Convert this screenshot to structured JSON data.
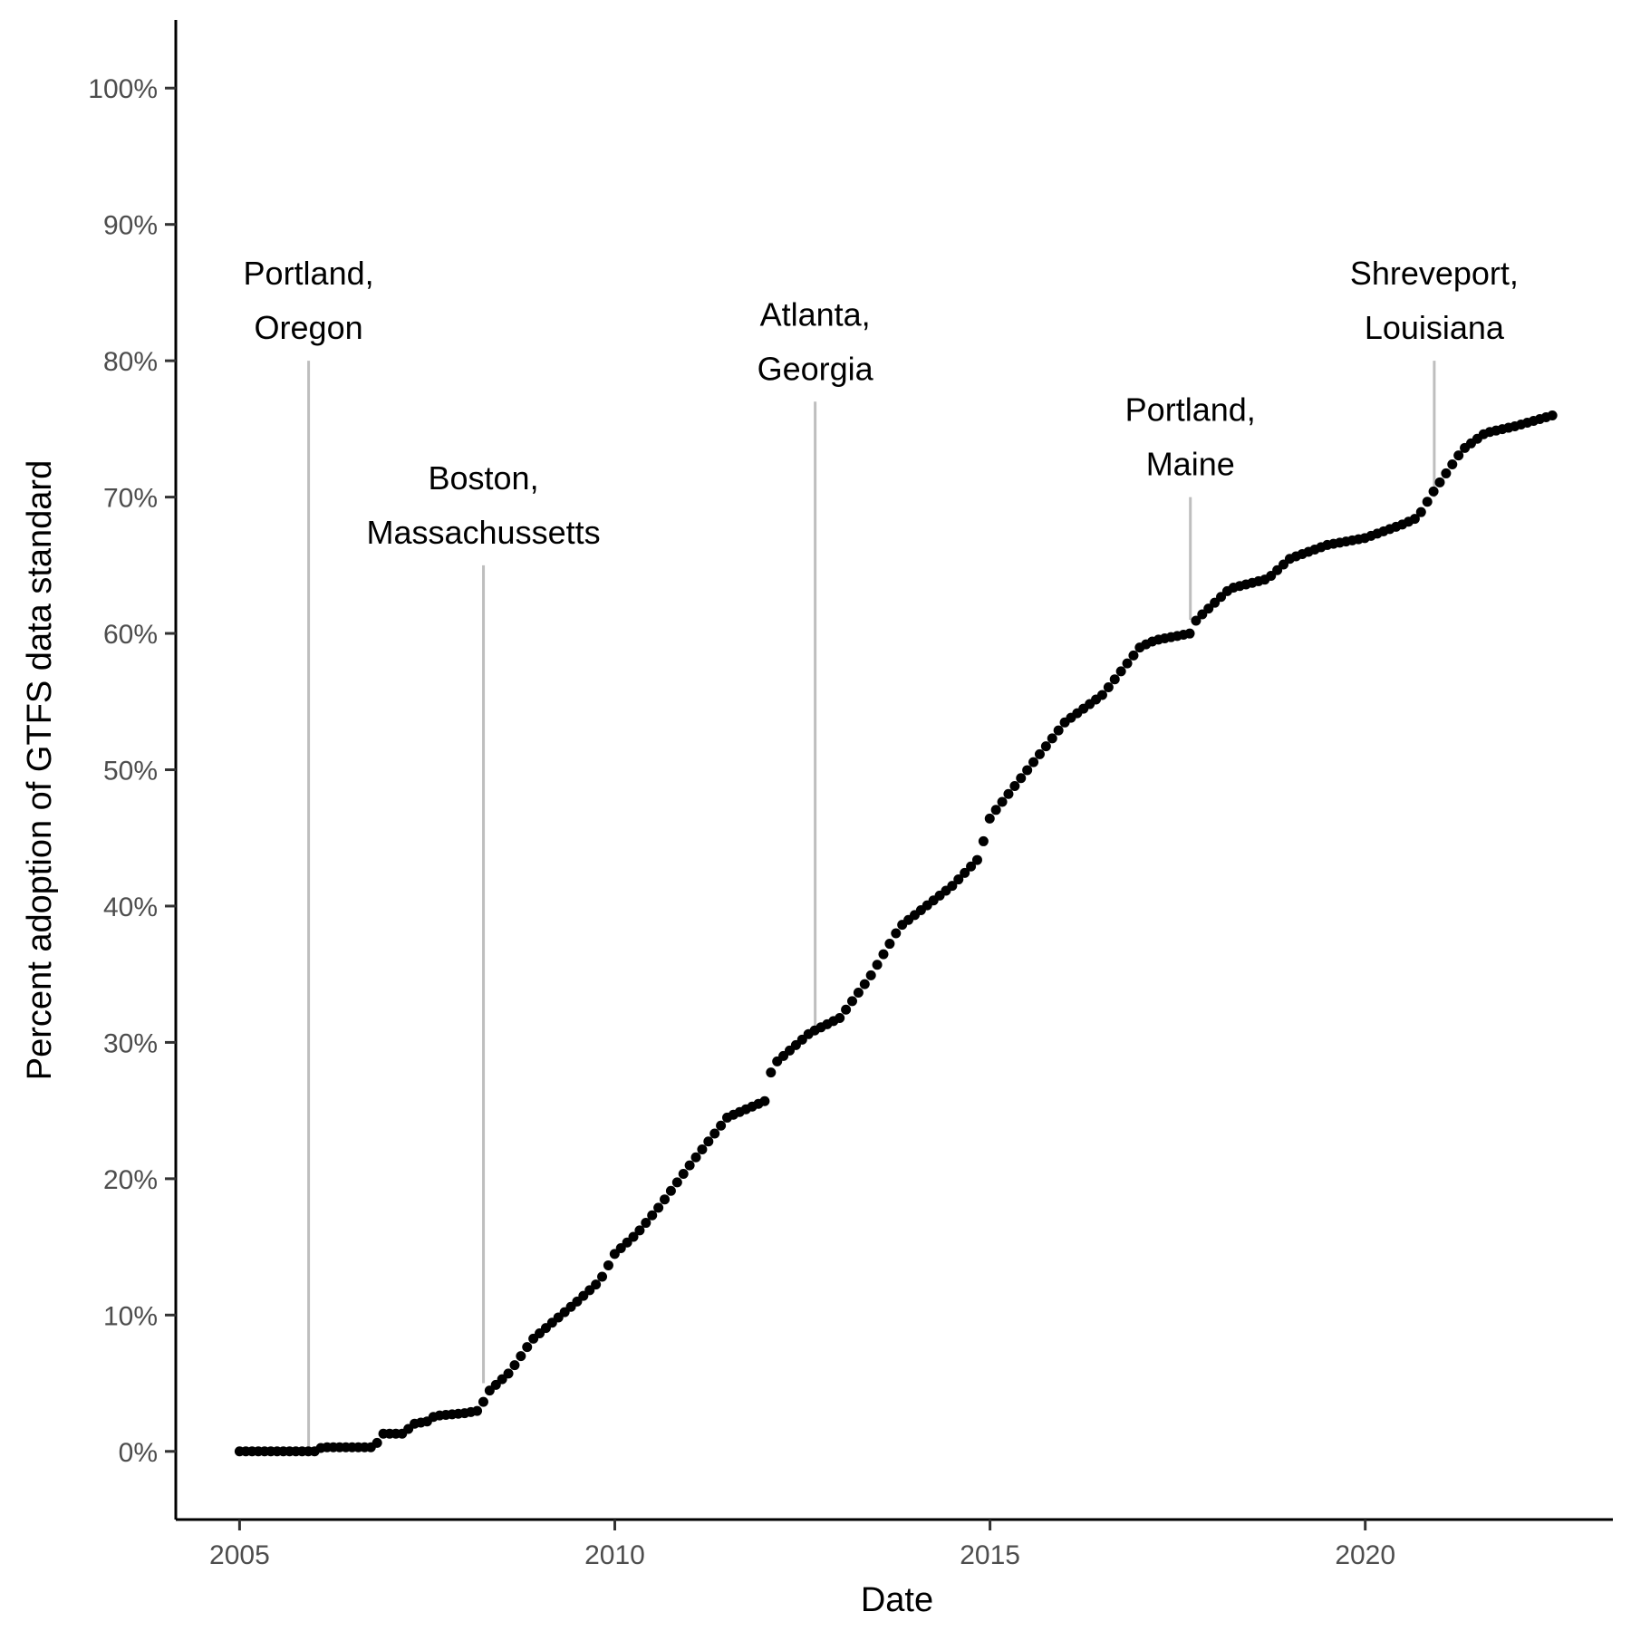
{
  "chart_data": {
    "type": "scatter",
    "title": "",
    "xlabel": "Date",
    "ylabel": "Percent adoption of GTFS data standard",
    "xlim": [
      2004.15,
      2023.3
    ],
    "ylim": [
      -5,
      105
    ],
    "x_ticks": [
      {
        "value": 2005,
        "label": "2005"
      },
      {
        "value": 2010,
        "label": "2010"
      },
      {
        "value": 2015,
        "label": "2015"
      },
      {
        "value": 2020,
        "label": "2020"
      }
    ],
    "y_ticks": [
      {
        "value": 0,
        "label": "0%"
      },
      {
        "value": 10,
        "label": "10%"
      },
      {
        "value": 20,
        "label": "20%"
      },
      {
        "value": 30,
        "label": "30%"
      },
      {
        "value": 40,
        "label": "40%"
      },
      {
        "value": 50,
        "label": "50%"
      },
      {
        "value": 60,
        "label": "60%"
      },
      {
        "value": 70,
        "label": "70%"
      },
      {
        "value": 80,
        "label": "80%"
      },
      {
        "value": 90,
        "label": "90%"
      },
      {
        "value": 100,
        "label": "100%"
      }
    ],
    "grid": false,
    "legend": "none",
    "point_color": "#000000",
    "annotation_line_color": "#bebebe",
    "annotations": [
      {
        "lines": [
          "Portland,",
          "Oregon"
        ],
        "x": 2005.92,
        "y_point": 0.2,
        "y_line_top": 80
      },
      {
        "lines": [
          "Boston,",
          "Massachussetts"
        ],
        "x": 2008.25,
        "y_point": 5,
        "y_line_top": 65
      },
      {
        "lines": [
          "Atlanta,",
          "Georgia"
        ],
        "x": 2012.67,
        "y_point": 31,
        "y_line_top": 77
      },
      {
        "lines": [
          "Portland,",
          "Maine"
        ],
        "x": 2017.67,
        "y_point": 61,
        "y_line_top": 70
      },
      {
        "lines": [
          "Shreveport,",
          "Louisiana"
        ],
        "x": 2020.92,
        "y_point": 70,
        "y_line_top": 80
      }
    ],
    "series_anchors": [
      [
        2005.0,
        0
      ],
      [
        2006.0,
        0
      ],
      [
        2006.1,
        0.3
      ],
      [
        2006.8,
        0.3
      ],
      [
        2006.9,
        1.3
      ],
      [
        2007.2,
        1.3
      ],
      [
        2007.3,
        2.0
      ],
      [
        2007.5,
        2.2
      ],
      [
        2007.6,
        2.6
      ],
      [
        2008.0,
        2.8
      ],
      [
        2008.2,
        3.0
      ],
      [
        2008.3,
        4.3
      ],
      [
        2008.6,
        5.8
      ],
      [
        2008.9,
        8.2
      ],
      [
        2009.2,
        9.6
      ],
      [
        2009.5,
        11.0
      ],
      [
        2009.8,
        12.5
      ],
      [
        2010.0,
        14.5
      ],
      [
        2010.3,
        16.0
      ],
      [
        2010.6,
        18.0
      ],
      [
        2011.0,
        21.0
      ],
      [
        2011.5,
        24.5
      ],
      [
        2012.0,
        25.7
      ],
      [
        2012.1,
        28.3
      ],
      [
        2012.6,
        30.7
      ],
      [
        2013.0,
        31.8
      ],
      [
        2013.4,
        34.8
      ],
      [
        2013.8,
        38.5
      ],
      [
        2014.5,
        41.5
      ],
      [
        2014.85,
        43.5
      ],
      [
        2015.0,
        46.5
      ],
      [
        2015.5,
        50.0
      ],
      [
        2016.0,
        53.5
      ],
      [
        2016.5,
        55.5
      ],
      [
        2017.0,
        59.0
      ],
      [
        2017.2,
        59.5
      ],
      [
        2017.67,
        60.0
      ],
      [
        2017.75,
        61.0
      ],
      [
        2018.2,
        63.3
      ],
      [
        2018.7,
        64.0
      ],
      [
        2019.0,
        65.5
      ],
      [
        2019.5,
        66.5
      ],
      [
        2020.0,
        67.0
      ],
      [
        2020.5,
        68.0
      ],
      [
        2020.7,
        68.5
      ],
      [
        2020.92,
        70.5
      ],
      [
        2021.3,
        73.5
      ],
      [
        2021.6,
        74.7
      ],
      [
        2022.0,
        75.2
      ],
      [
        2022.5,
        76.0
      ]
    ],
    "series_step": 0.0833
  }
}
